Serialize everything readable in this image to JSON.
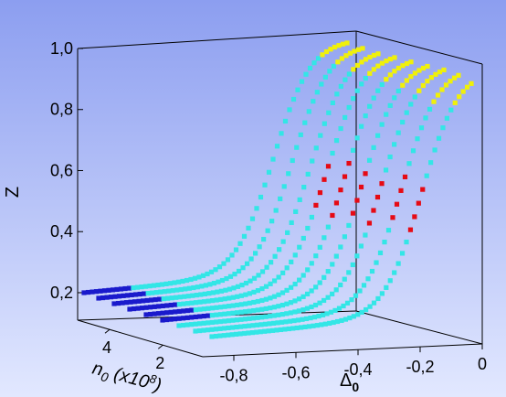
{
  "chart_data": {
    "type": "scatter",
    "title": "",
    "zlabel": "Z",
    "xlabel_main": "Δ",
    "xlabel_sub": "0",
    "ylabel_main": "n",
    "ylabel_sub": "0",
    "ylabel_mid": " (x10",
    "ylabel_exp": "8",
    "ylabel_end": ")",
    "z_ticks": [
      "1,0",
      "0,8",
      "0,6",
      "0,4",
      "0,2"
    ],
    "z_tick_values": [
      1.0,
      0.8,
      0.6,
      0.4,
      0.2
    ],
    "x_ticks": [
      "-0,8",
      "-0,6",
      "-0,4",
      "-0,2",
      "0"
    ],
    "x_tick_values": [
      -0.8,
      -0.6,
      -0.4,
      -0.2,
      0
    ],
    "y_ticks": [
      "4",
      "2"
    ],
    "y_tick_values": [
      4,
      2
    ],
    "colors": {
      "background_top": "#8c9ef0",
      "background_bottom": "#e2e8ff",
      "cyan": "#33e6e6",
      "blue": "#1a1acc",
      "red": "#e60a14",
      "yellow": "#f0f00a"
    },
    "series": [
      {
        "color": "cyan",
        "points": 28,
        "approx_delta0_shape": "sigmoid"
      },
      {
        "color": "yellow",
        "points": 14
      },
      {
        "color": "red",
        "points": 12
      },
      {
        "color": "blue",
        "points": 10
      }
    ]
  }
}
